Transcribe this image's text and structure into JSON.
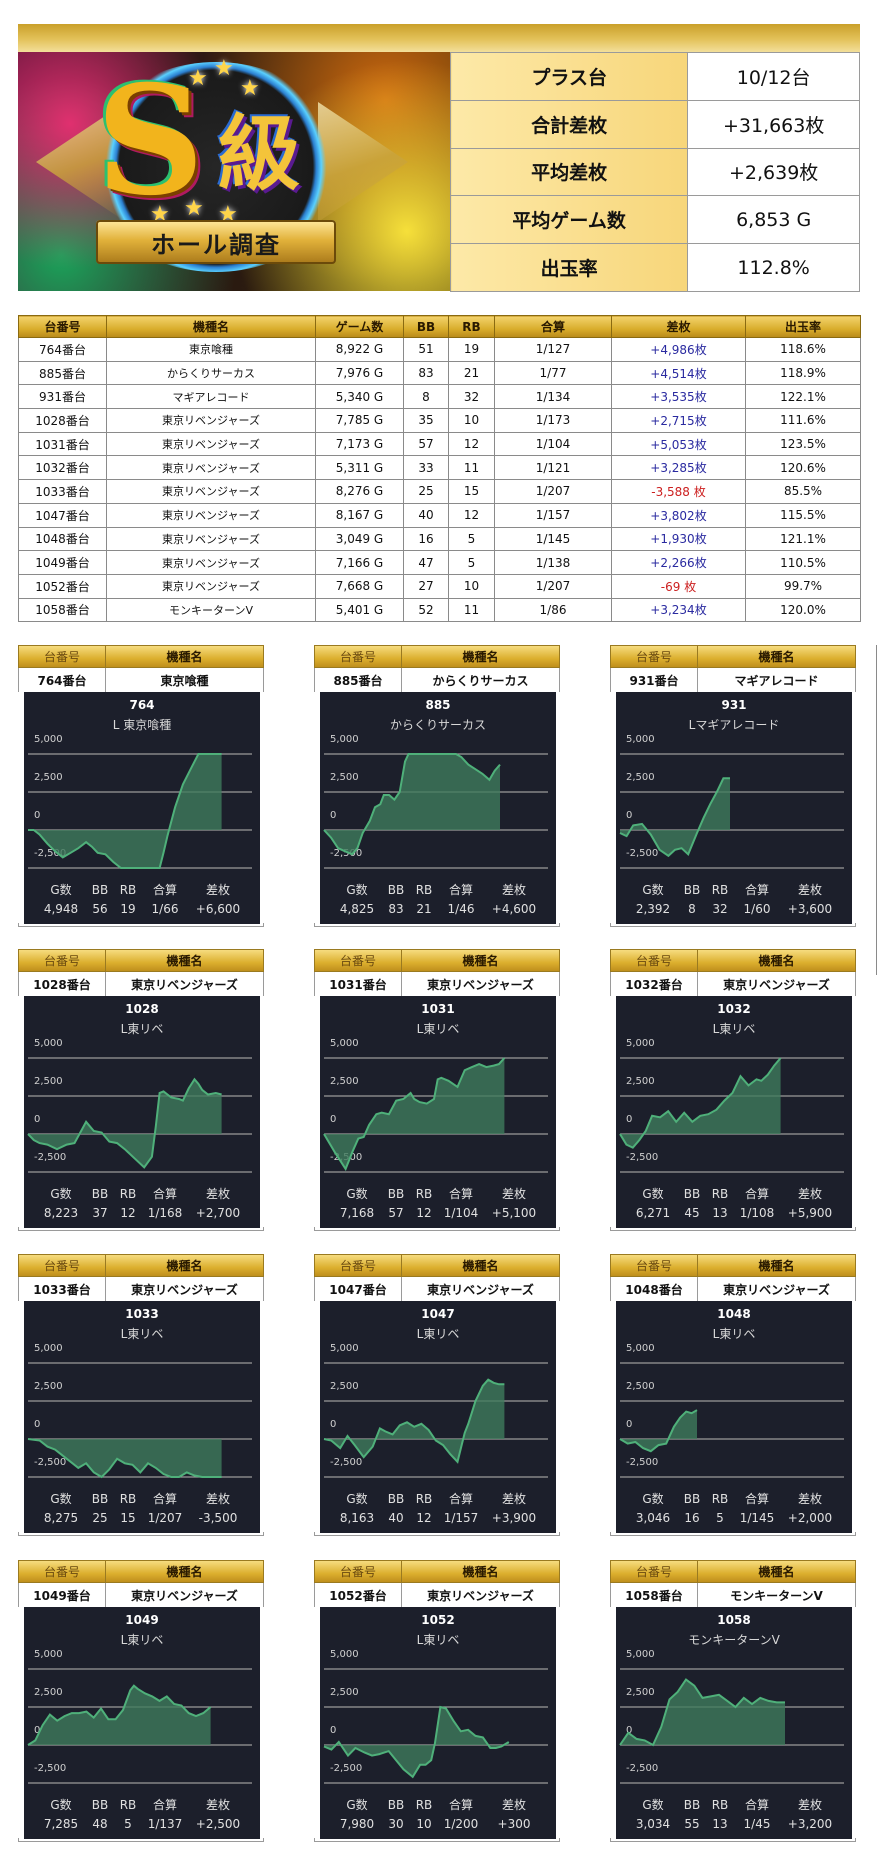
{
  "header": {
    "banner_title": "S級",
    "banner_ribbon": "ホール調査"
  },
  "summary": [
    {
      "label": "プラス台",
      "value": "10/12台"
    },
    {
      "label": "合計差枚",
      "value": "+31,663枚"
    },
    {
      "label": "平均差枚",
      "value": "+2,639枚"
    },
    {
      "label": "平均ゲーム数",
      "value": "6,853 G"
    },
    {
      "label": "出玉率",
      "value": "112.8%"
    }
  ],
  "table": {
    "columns": [
      "台番号",
      "機種名",
      "ゲーム数",
      "BB",
      "RB",
      "合算",
      "差枚",
      "出玉率"
    ],
    "rows": [
      {
        "no": "764番台",
        "model": "東京喰種",
        "games": "8,922 G",
        "bb": "51",
        "rb": "19",
        "combined": "1/127",
        "diff": "+4,986枚",
        "rate": "118.6%",
        "sign": "pos"
      },
      {
        "no": "885番台",
        "model": "からくりサーカス",
        "games": "7,976 G",
        "bb": "83",
        "rb": "21",
        "combined": "1/77",
        "diff": "+4,514枚",
        "rate": "118.9%",
        "sign": "pos"
      },
      {
        "no": "931番台",
        "model": "マギアレコード",
        "games": "5,340 G",
        "bb": "8",
        "rb": "32",
        "combined": "1/134",
        "diff": "+3,535枚",
        "rate": "122.1%",
        "sign": "pos"
      },
      {
        "no": "1028番台",
        "model": "東京リベンジャーズ",
        "games": "7,785 G",
        "bb": "35",
        "rb": "10",
        "combined": "1/173",
        "diff": "+2,715枚",
        "rate": "111.6%",
        "sign": "pos"
      },
      {
        "no": "1031番台",
        "model": "東京リベンジャーズ",
        "games": "7,173 G",
        "bb": "57",
        "rb": "12",
        "combined": "1/104",
        "diff": "+5,053枚",
        "rate": "123.5%",
        "sign": "pos"
      },
      {
        "no": "1032番台",
        "model": "東京リベンジャーズ",
        "games": "5,311 G",
        "bb": "33",
        "rb": "11",
        "combined": "1/121",
        "diff": "+3,285枚",
        "rate": "120.6%",
        "sign": "pos"
      },
      {
        "no": "1033番台",
        "model": "東京リベンジャーズ",
        "games": "8,276 G",
        "bb": "25",
        "rb": "15",
        "combined": "1/207",
        "diff": "-3,588 枚",
        "rate": "85.5%",
        "sign": "neg"
      },
      {
        "no": "1047番台",
        "model": "東京リベンジャーズ",
        "games": "8,167 G",
        "bb": "40",
        "rb": "12",
        "combined": "1/157",
        "diff": "+3,802枚",
        "rate": "115.5%",
        "sign": "pos"
      },
      {
        "no": "1048番台",
        "model": "東京リベンジャーズ",
        "games": "3,049 G",
        "bb": "16",
        "rb": "5",
        "combined": "1/145",
        "diff": "+1,930枚",
        "rate": "121.1%",
        "sign": "pos"
      },
      {
        "no": "1049番台",
        "model": "東京リベンジャーズ",
        "games": "7,166 G",
        "bb": "47",
        "rb": "5",
        "combined": "1/138",
        "diff": "+2,266枚",
        "rate": "110.5%",
        "sign": "pos"
      },
      {
        "no": "1052番台",
        "model": "東京リベンジャーズ",
        "games": "7,668 G",
        "bb": "27",
        "rb": "10",
        "combined": "1/207",
        "diff": "-69 枚",
        "rate": "99.7%",
        "sign": "neg"
      },
      {
        "no": "1058番台",
        "model": "モンキーターンV",
        "games": "5,401 G",
        "bb": "52",
        "rb": "11",
        "combined": "1/86",
        "diff": "+3,234枚",
        "rate": "120.0%",
        "sign": "pos"
      }
    ]
  },
  "card_labels": {
    "col_no": "台番号",
    "col_model": "機種名",
    "stat_headers": [
      "G数",
      "BB",
      "RB",
      "合算",
      "差枚"
    ],
    "y_ticks": [
      "5,000",
      "2,500",
      "0",
      "-2,500"
    ]
  },
  "colors": {
    "line": "#4fb07a",
    "fill": "#3e7a5c",
    "panel_bg": "#1c1f2b",
    "gold": "#d9ad2c",
    "positive": "#2a2aa0",
    "negative": "#cc2020"
  },
  "chart_data": [
    {
      "type": "area",
      "no": "764番台",
      "model": "東京喰種",
      "title": "764",
      "subtitle": "L 東京喰種",
      "ylim": [
        -2500,
        5000
      ],
      "yticks": [
        5000,
        2500,
        0,
        -2500
      ],
      "x": [
        0,
        0.03,
        0.06,
        0.1,
        0.14,
        0.18,
        0.22,
        0.26,
        0.3,
        0.33,
        0.36,
        0.4,
        0.44,
        0.48,
        0.52,
        0.56,
        0.6,
        0.64,
        0.68,
        0.7,
        0.72,
        0.76,
        0.8,
        0.84,
        0.88,
        0.9,
        0.92,
        0.96,
        1.0
      ],
      "values": [
        0,
        0,
        -300,
        -900,
        -1400,
        -1800,
        -1500,
        -1200,
        -800,
        -1100,
        -1500,
        -1600,
        -2100,
        -2500,
        -2500,
        -2500,
        -2500,
        -2500,
        -2500,
        -1500,
        -400,
        1500,
        3000,
        4000,
        5000,
        5000,
        5000,
        5000,
        5000
      ],
      "stats": {
        "games": "4,948",
        "bb": "56",
        "rb": "19",
        "combined": "1/66",
        "diff": "+6,600"
      }
    },
    {
      "type": "area",
      "no": "885番台",
      "model": "からくりサーカス",
      "title": "885",
      "subtitle": "からくりサーカス",
      "ylim": [
        -2500,
        5000
      ],
      "yticks": [
        5000,
        2500,
        0,
        -2500
      ],
      "x": [
        0,
        0.04,
        0.08,
        0.12,
        0.16,
        0.19,
        0.22,
        0.26,
        0.29,
        0.32,
        0.34,
        0.37,
        0.4,
        0.43,
        0.46,
        0.48,
        0.5,
        0.55,
        0.6,
        0.65,
        0.7,
        0.75,
        0.78,
        0.82,
        0.86,
        0.9,
        0.94,
        0.97,
        1.0
      ],
      "values": [
        0,
        -500,
        -1200,
        -1400,
        -1600,
        -1200,
        -200,
        600,
        1500,
        1700,
        2300,
        2300,
        2000,
        2500,
        4500,
        5000,
        5000,
        5000,
        5000,
        5000,
        5000,
        5000,
        4800,
        4300,
        4000,
        3700,
        3300,
        3900,
        4300
      ],
      "stats": {
        "games": "4,825",
        "bb": "83",
        "rb": "21",
        "combined": "1/46",
        "diff": "+4,600"
      }
    },
    {
      "type": "area",
      "no": "931番台",
      "model": "マギアレコード",
      "title": "931",
      "subtitle": "Lマギアレコード",
      "ylim": [
        -2500,
        5000
      ],
      "yticks": [
        5000,
        2500,
        0,
        -2500
      ],
      "x": [
        0,
        0.06,
        0.12,
        0.2,
        0.28,
        0.36,
        0.44,
        0.5,
        0.56,
        0.62,
        0.7,
        0.76,
        0.82,
        0.88,
        0.94,
        1.0
      ],
      "values": [
        -200,
        -400,
        300,
        400,
        -300,
        -1300,
        -1700,
        -1300,
        -1200,
        -1600,
        -200,
        800,
        1700,
        2500,
        3400,
        3400
      ],
      "stats": {
        "games": "2,392",
        "bb": "8",
        "rb": "32",
        "combined": "1/60",
        "diff": "+3,600"
      }
    },
    {
      "type": "area",
      "no": "1028番台",
      "model": "東京リベンジャーズ",
      "title": "1028",
      "subtitle": "L東リベ",
      "ylim": [
        -2500,
        5000
      ],
      "yticks": [
        5000,
        2500,
        0,
        -2500
      ],
      "x": [
        0,
        0.03,
        0.06,
        0.1,
        0.15,
        0.2,
        0.24,
        0.27,
        0.3,
        0.34,
        0.38,
        0.42,
        0.46,
        0.5,
        0.55,
        0.6,
        0.64,
        0.66,
        0.68,
        0.7,
        0.74,
        0.78,
        0.8,
        0.83,
        0.86,
        0.88,
        0.9,
        0.93,
        0.97,
        1.0
      ],
      "values": [
        0,
        -400,
        -600,
        -700,
        -1000,
        -700,
        -600,
        100,
        800,
        200,
        100,
        -500,
        -600,
        -1000,
        -1600,
        -2200,
        -1500,
        500,
        2700,
        2800,
        2400,
        2300,
        2200,
        3000,
        3600,
        3300,
        2900,
        2600,
        2700,
        2600
      ],
      "stats": {
        "games": "8,223",
        "bb": "37",
        "rb": "12",
        "combined": "1/168",
        "diff": "+2,700"
      }
    },
    {
      "type": "area",
      "no": "1031番台",
      "model": "東京リベンジャーズ",
      "title": "1031",
      "subtitle": "L東リベ",
      "ylim": [
        -2500,
        5000
      ],
      "yticks": [
        5000,
        2500,
        0,
        -2500
      ],
      "x": [
        0,
        0.06,
        0.12,
        0.16,
        0.19,
        0.22,
        0.25,
        0.29,
        0.32,
        0.36,
        0.4,
        0.44,
        0.48,
        0.5,
        0.53,
        0.57,
        0.61,
        0.63,
        0.65,
        0.69,
        0.74,
        0.78,
        0.82,
        0.86,
        0.9,
        0.94,
        0.97,
        1.0
      ],
      "values": [
        0,
        -1200,
        -2300,
        -1100,
        -300,
        -200,
        600,
        1300,
        1400,
        1300,
        2200,
        2300,
        2700,
        2300,
        2100,
        2000,
        2300,
        3600,
        3700,
        3500,
        3100,
        4200,
        4400,
        4600,
        4400,
        4500,
        4600,
        5000
      ],
      "stats": {
        "games": "7,168",
        "bb": "57",
        "rb": "12",
        "combined": "1/104",
        "diff": "+5,100"
      }
    },
    {
      "type": "area",
      "no": "1032番台",
      "model": "東京リベンジャーズ",
      "title": "1032",
      "subtitle": "L東リベ",
      "ylim": [
        -2500,
        5000
      ],
      "yticks": [
        5000,
        2500,
        0,
        -2500
      ],
      "x": [
        0,
        0.04,
        0.08,
        0.12,
        0.16,
        0.2,
        0.25,
        0.3,
        0.35,
        0.4,
        0.45,
        0.5,
        0.55,
        0.6,
        0.65,
        0.7,
        0.75,
        0.8,
        0.85,
        0.88,
        0.92,
        0.96,
        1.0
      ],
      "values": [
        0,
        -700,
        -900,
        -400,
        200,
        1200,
        1100,
        1500,
        800,
        1400,
        800,
        1200,
        1300,
        1600,
        2200,
        2700,
        3800,
        3200,
        3600,
        3500,
        3900,
        4500,
        5200
      ],
      "stats": {
        "games": "6,271",
        "bb": "45",
        "rb": "13",
        "combined": "1/108",
        "diff": "+5,900"
      }
    },
    {
      "type": "area",
      "no": "1033番台",
      "model": "東京リベンジャーズ",
      "title": "1033",
      "subtitle": "L東リベ",
      "ylim": [
        -2500,
        5000
      ],
      "yticks": [
        5000,
        2500,
        0,
        -2500
      ],
      "x": [
        0,
        0.06,
        0.1,
        0.14,
        0.18,
        0.22,
        0.26,
        0.3,
        0.34,
        0.38,
        0.42,
        0.46,
        0.5,
        0.54,
        0.58,
        0.62,
        0.66,
        0.7,
        0.74,
        0.78,
        0.82,
        0.86,
        0.9,
        0.94,
        1.0
      ],
      "values": [
        0,
        -100,
        -500,
        -700,
        -1100,
        -1500,
        -1900,
        -1600,
        -2200,
        -2500,
        -2000,
        -1300,
        -1600,
        -1700,
        -2200,
        -1600,
        -1900,
        -2300,
        -2500,
        -2500,
        -2200,
        -2400,
        -2500,
        -2500,
        -2500
      ],
      "stats": {
        "games": "8,275",
        "bb": "25",
        "rb": "15",
        "combined": "1/207",
        "diff": "-3,500"
      }
    },
    {
      "type": "area",
      "no": "1047番台",
      "model": "東京リベンジャーズ",
      "title": "1047",
      "subtitle": "L東リベ",
      "ylim": [
        -2500,
        5000
      ],
      "yticks": [
        5000,
        2500,
        0,
        -2500
      ],
      "x": [
        0,
        0.04,
        0.09,
        0.13,
        0.17,
        0.22,
        0.27,
        0.31,
        0.34,
        0.38,
        0.42,
        0.46,
        0.5,
        0.54,
        0.58,
        0.62,
        0.66,
        0.7,
        0.74,
        0.78,
        0.8,
        0.84,
        0.88,
        0.91,
        0.94,
        0.97,
        1.0
      ],
      "values": [
        0,
        -100,
        -600,
        200,
        -400,
        -1200,
        -500,
        700,
        500,
        300,
        900,
        1100,
        800,
        1000,
        600,
        -100,
        -400,
        -1000,
        -1500,
        400,
        1000,
        2500,
        3500,
        3900,
        3700,
        3600,
        3600
      ],
      "stats": {
        "games": "8,163",
        "bb": "40",
        "rb": "12",
        "combined": "1/157",
        "diff": "+3,900"
      }
    },
    {
      "type": "area",
      "no": "1048番台",
      "model": "東京リベンジャーズ",
      "title": "1048",
      "subtitle": "L東リベ",
      "ylim": [
        -2500,
        5000
      ],
      "yticks": [
        5000,
        2500,
        0,
        -2500
      ],
      "x": [
        0,
        0.1,
        0.2,
        0.3,
        0.4,
        0.5,
        0.6,
        0.7,
        0.78,
        0.86,
        0.93,
        1.0
      ],
      "values": [
        0,
        -300,
        -200,
        -600,
        -800,
        -400,
        -300,
        800,
        1400,
        1800,
        1700,
        1900
      ],
      "stats": {
        "games": "3,046",
        "bb": "16",
        "rb": "5",
        "combined": "1/145",
        "diff": "+2,000"
      }
    },
    {
      "type": "area",
      "no": "1049番台",
      "model": "東京リベンジャーズ",
      "title": "1049",
      "subtitle": "L東リベ",
      "ylim": [
        -2500,
        5000
      ],
      "yticks": [
        5000,
        2500,
        0,
        -2500
      ],
      "x": [
        0,
        0.04,
        0.08,
        0.12,
        0.16,
        0.2,
        0.24,
        0.28,
        0.32,
        0.36,
        0.4,
        0.44,
        0.48,
        0.52,
        0.56,
        0.58,
        0.6,
        0.64,
        0.68,
        0.72,
        0.76,
        0.8,
        0.84,
        0.88,
        0.92,
        0.96,
        1.0
      ],
      "values": [
        0,
        300,
        1300,
        2000,
        1600,
        1900,
        2100,
        2100,
        2200,
        1800,
        2400,
        1700,
        1700,
        2300,
        3600,
        3900,
        3700,
        3400,
        3200,
        2900,
        3200,
        2700,
        2600,
        2100,
        1900,
        2100,
        2500
      ],
      "stats": {
        "games": "7,285",
        "bb": "48",
        "rb": "5",
        "combined": "1/137",
        "diff": "+2,500"
      }
    },
    {
      "type": "area",
      "no": "1052番台",
      "model": "東京リベンジャーズ",
      "title": "1052",
      "subtitle": "L東リベ",
      "ylim": [
        -2500,
        5000
      ],
      "yticks": [
        5000,
        2500,
        0,
        -2500
      ],
      "x": [
        0,
        0.04,
        0.08,
        0.13,
        0.17,
        0.22,
        0.26,
        0.3,
        0.35,
        0.39,
        0.43,
        0.48,
        0.52,
        0.55,
        0.58,
        0.6,
        0.63,
        0.66,
        0.7,
        0.74,
        0.78,
        0.82,
        0.86,
        0.9,
        0.93,
        0.96,
        1.0
      ],
      "values": [
        -100,
        -300,
        200,
        -700,
        -200,
        -500,
        -700,
        -600,
        -400,
        -1000,
        -1600,
        -2100,
        -1300,
        -1300,
        -1000,
        100,
        2500,
        2400,
        1600,
        900,
        1000,
        600,
        500,
        -200,
        -200,
        -100,
        200
      ],
      "stats": {
        "games": "7,980",
        "bb": "30",
        "rb": "10",
        "combined": "1/200",
        "diff": "+300"
      }
    },
    {
      "type": "area",
      "no": "1058番台",
      "model": "モンキーターンV",
      "title": "1058",
      "subtitle": "モンキーターンV",
      "ylim": [
        -2500,
        5000
      ],
      "yticks": [
        5000,
        2500,
        0,
        -2500
      ],
      "x": [
        0,
        0.05,
        0.1,
        0.15,
        0.2,
        0.25,
        0.3,
        0.35,
        0.4,
        0.45,
        0.5,
        0.55,
        0.6,
        0.65,
        0.7,
        0.75,
        0.8,
        0.85,
        0.9,
        0.95,
        1.0
      ],
      "values": [
        0,
        800,
        400,
        300,
        0,
        1200,
        3000,
        3500,
        4300,
        3900,
        3100,
        3200,
        3300,
        2900,
        2500,
        3100,
        2700,
        3100,
        2900,
        2800,
        2800
      ],
      "stats": {
        "games": "3,034",
        "bb": "55",
        "rb": "13",
        "combined": "1/45",
        "diff": "+3,200"
      }
    }
  ]
}
